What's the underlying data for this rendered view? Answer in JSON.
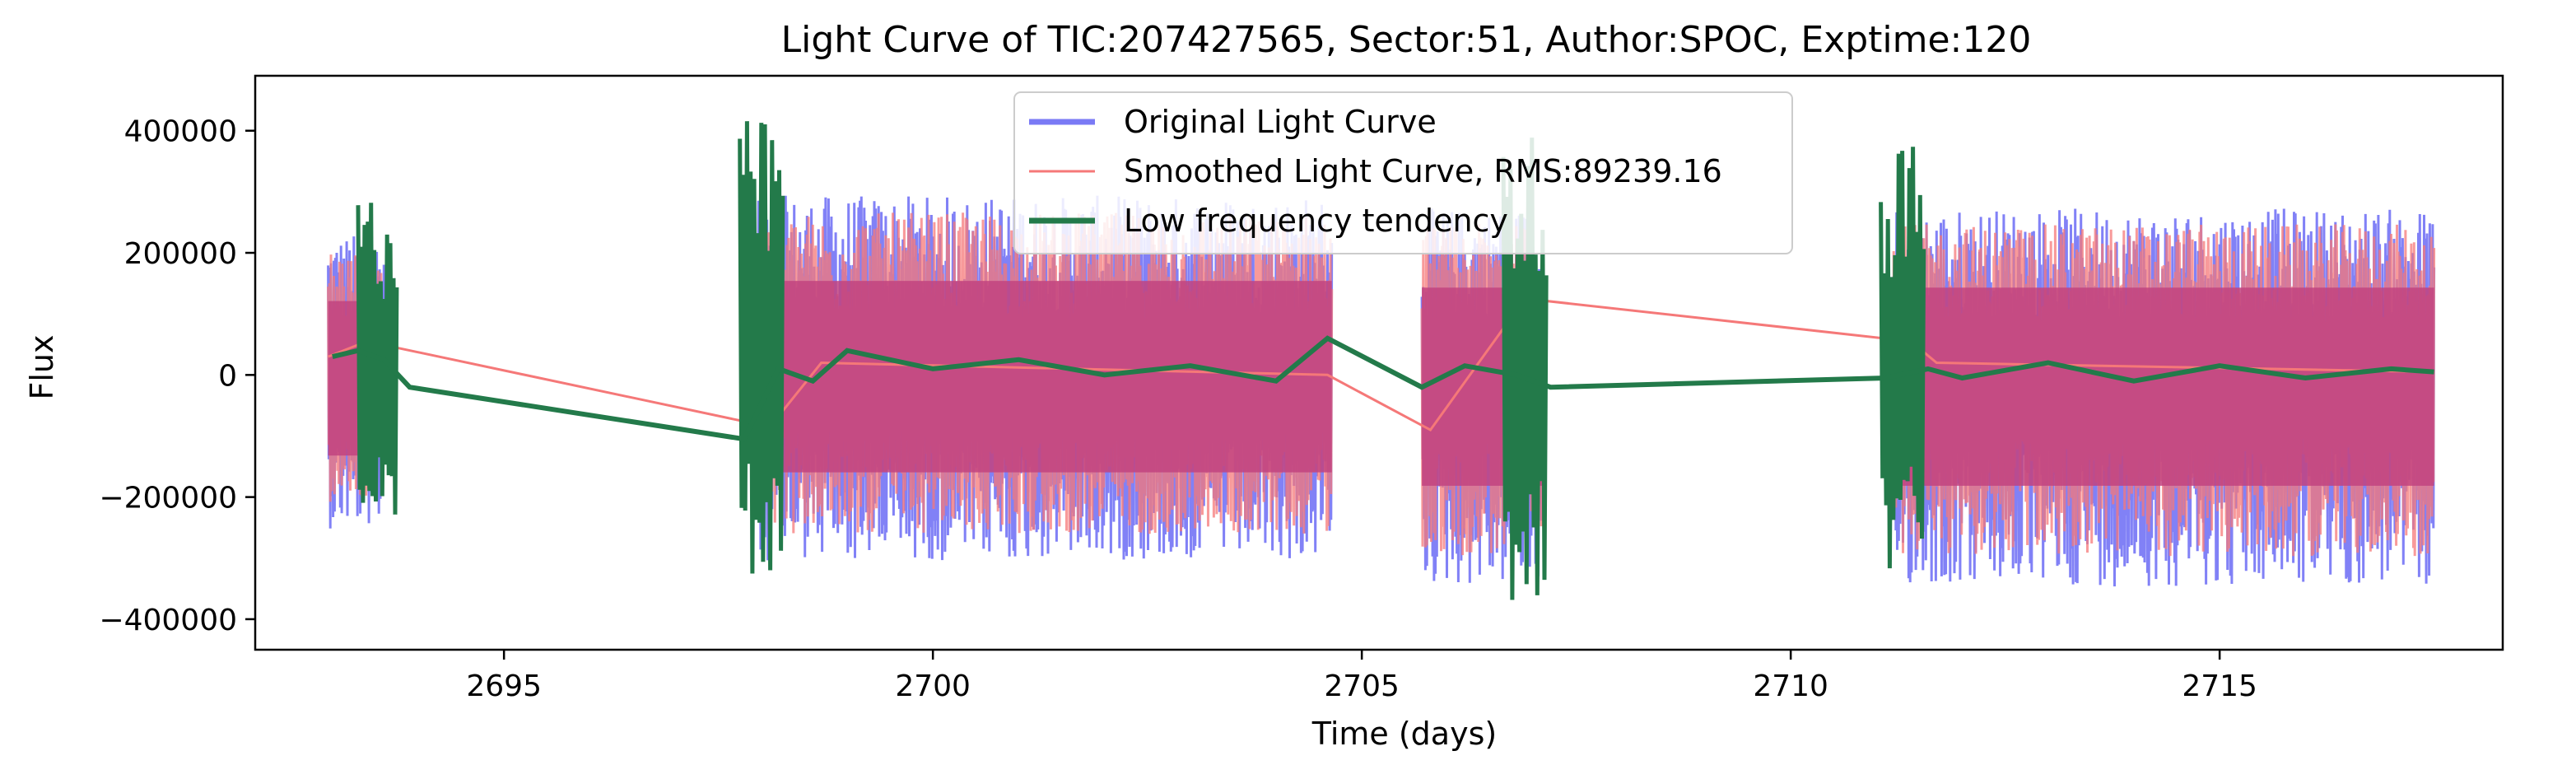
{
  "chart_data": {
    "type": "line",
    "title": "Light Curve of TIC:207427565, Sector:51, Author:SPOC, Exptime:120",
    "xlabel": "Time (days)",
    "ylabel": "Flux",
    "xlim": [
      2692.1,
      2718.3
    ],
    "ylim": [
      -450000,
      490000
    ],
    "x_ticks": [
      2695,
      2700,
      2705,
      2710,
      2715
    ],
    "y_ticks": [
      -400000,
      -200000,
      0,
      200000,
      400000
    ],
    "x_tick_labels": [
      "2695",
      "2700",
      "2705",
      "2710",
      "2715"
    ],
    "y_tick_labels": [
      "−400000",
      "−200000",
      "0",
      "200000",
      "400000"
    ],
    "grid": false,
    "legend_position": "top-center",
    "segments": [
      {
        "start": 2692.95,
        "end": 2693.6,
        "amp_hi": 220000,
        "amp_lo": -240000
      },
      {
        "start": 2697.95,
        "end": 2704.65,
        "amp_hi": 280000,
        "amp_lo": -290000
      },
      {
        "start": 2705.7,
        "end": 2707.1,
        "amp_hi": 260000,
        "amp_lo": -330000
      },
      {
        "start": 2711.2,
        "end": 2717.5,
        "amp_hi": 260000,
        "amp_lo": -330000
      }
    ],
    "series": [
      {
        "name": "Original Light Curve",
        "color": "#7a7af5",
        "style": "band",
        "x": [
          2692.95,
          2693.6,
          2697.95,
          2704.65,
          2705.7,
          2707.1,
          2711.2,
          2717.5
        ],
        "y_max": [
          190000,
          290000,
          310000,
          240000,
          310000,
          330000,
          320000,
          130000
        ],
        "y_min": [
          -190000,
          -240000,
          -300000,
          -180000,
          -250000,
          -330000,
          -400000,
          -150000
        ]
      },
      {
        "name": "Smoothed Light Curve, RMS:89239.16",
        "color": "#f57878",
        "style": "line",
        "x": [
          2692.95,
          2693.4,
          2698.1,
          2698.7,
          2704.6,
          2705.8,
          2706.9,
          2711.4,
          2711.7,
          2717.5
        ],
        "y": [
          30000,
          55000,
          -85000,
          20000,
          0,
          -90000,
          125000,
          55000,
          20000,
          5000
        ]
      },
      {
        "name": "Low frequency tendency",
        "color": "#237a4a",
        "style": "line",
        "x": [
          2693.0,
          2693.3,
          2693.6,
          2693.9,
          2697.8,
          2698.2,
          2698.6,
          2699.0,
          2700.0,
          2701.0,
          2702.0,
          2703.0,
          2704.0,
          2704.6,
          2705.7,
          2706.2,
          2706.8,
          2707.2,
          2711.1,
          2711.6,
          2712.0,
          2713.0,
          2714.0,
          2715.0,
          2716.0,
          2717.0,
          2717.5
        ],
        "y": [
          30000,
          40000,
          25000,
          -20000,
          -105000,
          10000,
          -10000,
          40000,
          10000,
          25000,
          0,
          15000,
          -10000,
          60000,
          -20000,
          15000,
          0,
          -20000,
          -5000,
          10000,
          -5000,
          20000,
          -10000,
          15000,
          -5000,
          10000,
          5000
        ]
      }
    ]
  }
}
